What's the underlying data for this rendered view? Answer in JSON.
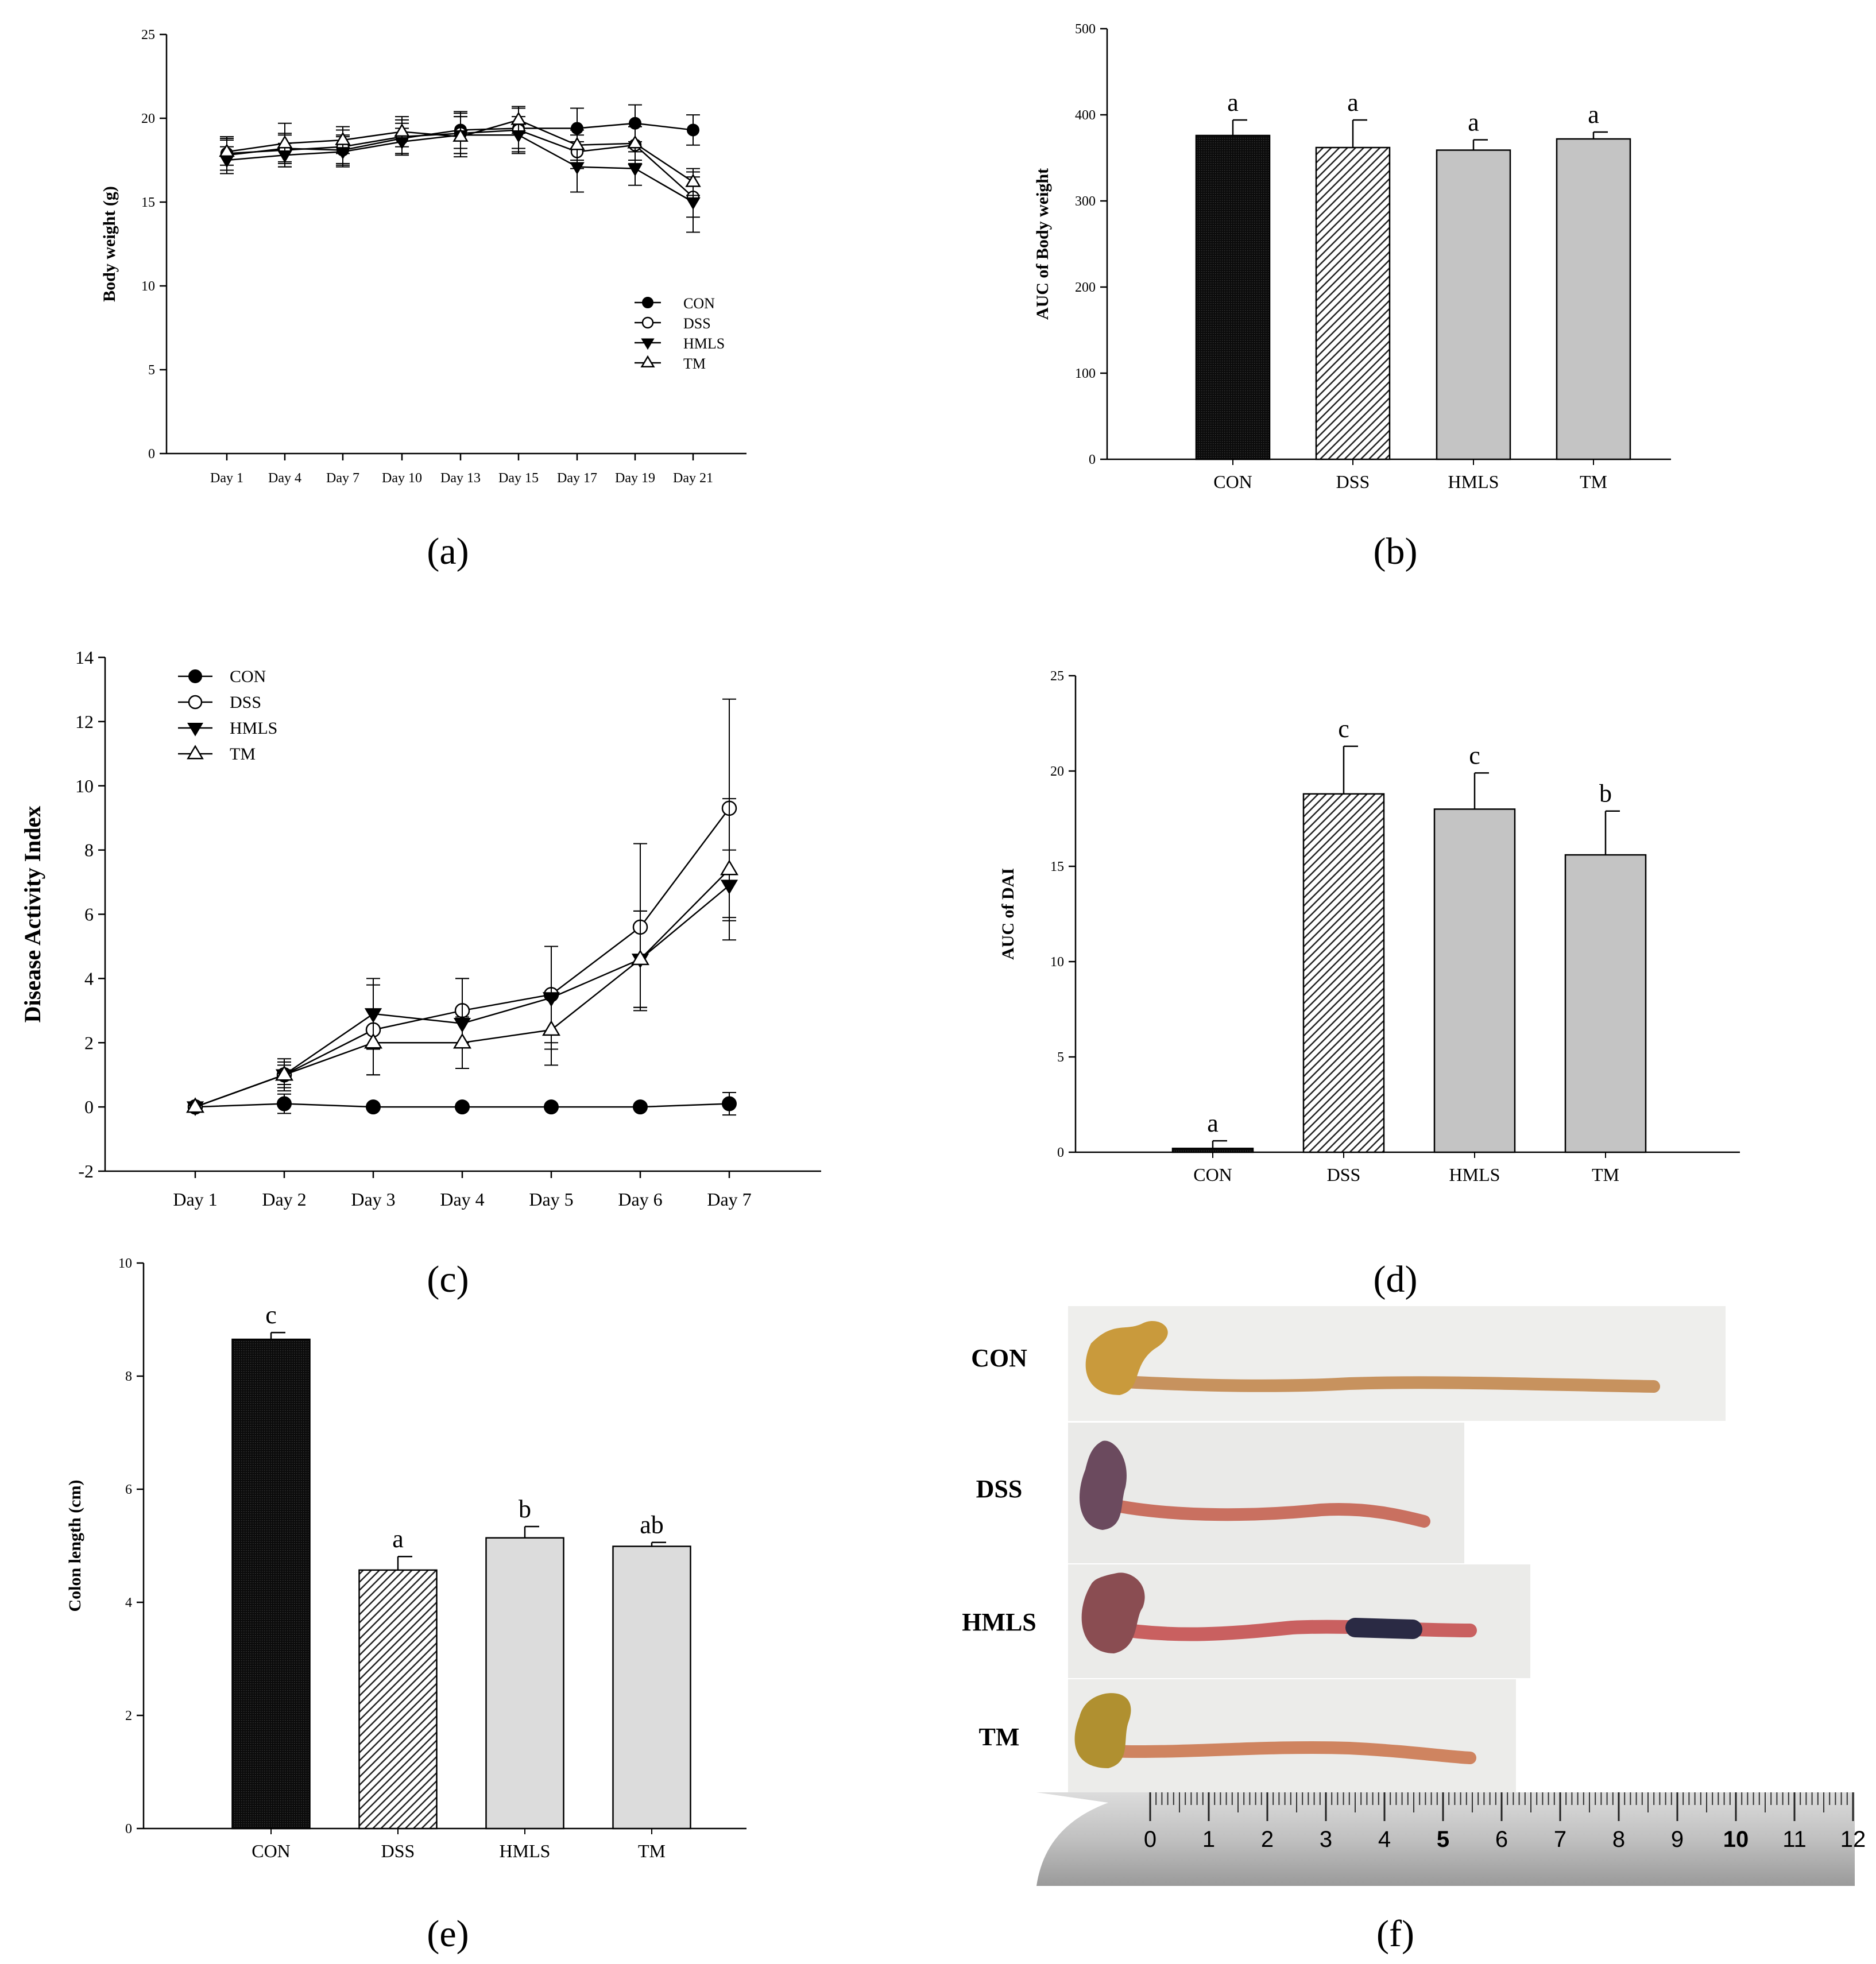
{
  "figure": {
    "panels": [
      {
        "id": "a",
        "label": "(a)"
      },
      {
        "id": "b",
        "label": "(b)"
      },
      {
        "id": "c",
        "label": "(c)"
      },
      {
        "id": "d",
        "label": "(d)"
      },
      {
        "id": "e",
        "label": "(e)"
      },
      {
        "id": "f",
        "label": "(f)"
      }
    ]
  },
  "photo": {
    "rows": [
      "CON",
      "DSS",
      "HMLS",
      "TM"
    ],
    "ruler_ticks": [
      "0",
      "1",
      "2",
      "3",
      "4",
      "5",
      "6",
      "7",
      "8",
      "9",
      "10",
      "11",
      "12"
    ]
  },
  "colors": {
    "black": "#000000",
    "bar_con": "#111111",
    "bar_gray": "#c4c4c4",
    "bar_gray_light": "#dcdcdc",
    "hatch": "#222222"
  },
  "chart_data": [
    {
      "id": "a",
      "type": "line",
      "title": "",
      "xlabel": "",
      "ylabel": "Body weight (g)",
      "categories": [
        "Day 1",
        "Day 4",
        "Day 7",
        "Day 10",
        "Day 13",
        "Day 15",
        "Day 17",
        "Day 19",
        "Day 21"
      ],
      "ylim": [
        0,
        25
      ],
      "yticks": [
        0,
        5,
        10,
        15,
        20,
        25
      ],
      "legend_position": "bottom-right",
      "series": [
        {
          "name": "CON",
          "marker": "circle-filled",
          "values": [
            17.8,
            18.2,
            18.1,
            18.8,
            19.3,
            19.4,
            19.4,
            19.7,
            19.3
          ],
          "errors": [
            0.9,
            0.8,
            0.9,
            0.9,
            1.1,
            1.2,
            1.2,
            1.1,
            0.9
          ]
        },
        {
          "name": "DSS",
          "marker": "circle-open",
          "values": [
            17.9,
            18.1,
            18.3,
            18.9,
            19.1,
            19.3,
            18.0,
            18.4,
            15.3
          ],
          "errors": [
            1.0,
            1.0,
            1.0,
            1.0,
            1.2,
            1.3,
            1.0,
            1.1,
            1.2
          ]
        },
        {
          "name": "HMLS",
          "marker": "triangle-down-filled",
          "values": [
            17.5,
            17.8,
            18.0,
            18.6,
            19.0,
            19.0,
            17.1,
            17.0,
            15.0
          ],
          "errors": [
            0.8,
            0.7,
            0.9,
            0.8,
            1.1,
            1.1,
            1.5,
            1.0,
            1.8
          ]
        },
        {
          "name": "TM",
          "marker": "triangle-up-open",
          "values": [
            18.0,
            18.5,
            18.7,
            19.2,
            18.9,
            19.9,
            18.4,
            18.5,
            16.2
          ],
          "errors": [
            0.8,
            1.2,
            0.8,
            0.9,
            1.2,
            0.8,
            0.9,
            1.0,
            0.8
          ]
        }
      ]
    },
    {
      "id": "b",
      "type": "bar",
      "title": "",
      "xlabel": "",
      "ylabel": "AUC of Body weight",
      "categories": [
        "CON",
        "DSS",
        "HMLS",
        "TM"
      ],
      "values": [
        376,
        362,
        359,
        372
      ],
      "errors": [
        18,
        32,
        12,
        8
      ],
      "letters": [
        "a",
        "a",
        "a",
        "a"
      ],
      "fills": [
        "solid-dark",
        "hatch",
        "gray",
        "gray"
      ],
      "ylim": [
        0,
        500
      ],
      "yticks": [
        0,
        100,
        200,
        300,
        400,
        500
      ]
    },
    {
      "id": "c",
      "type": "line",
      "title": "",
      "xlabel": "",
      "ylabel": "Disease Activity Index",
      "categories": [
        "Day 1",
        "Day 2",
        "Day 3",
        "Day 4",
        "Day 5",
        "Day 6",
        "Day 7"
      ],
      "ylim": [
        -2,
        14
      ],
      "yticks": [
        -2,
        0,
        2,
        4,
        6,
        8,
        10,
        12,
        14
      ],
      "legend_position": "top-left",
      "series": [
        {
          "name": "CON",
          "marker": "circle-filled",
          "values": [
            0,
            0.1,
            0,
            0,
            0,
            0,
            0.1
          ],
          "errors": [
            0,
            0.3,
            0,
            0,
            0,
            0,
            0.35
          ]
        },
        {
          "name": "DSS",
          "marker": "circle-open",
          "values": [
            0,
            1.0,
            2.4,
            3.0,
            3.5,
            5.6,
            9.3
          ],
          "errors": [
            0,
            0.5,
            1.4,
            1.0,
            1.5,
            2.6,
            3.4
          ]
        },
        {
          "name": "HMLS",
          "marker": "triangle-down-filled",
          "values": [
            0,
            1.0,
            2.9,
            2.6,
            3.4,
            4.6,
            6.9
          ],
          "errors": [
            0,
            0.3,
            1.1,
            1.4,
            1.6,
            1.5,
            1.1
          ]
        },
        {
          "name": "TM",
          "marker": "triangle-up-open",
          "values": [
            0,
            1.0,
            2.0,
            2.0,
            2.4,
            4.6,
            7.4
          ],
          "errors": [
            0,
            0.4,
            1.0,
            0.8,
            1.1,
            1.5,
            2.2
          ]
        }
      ]
    },
    {
      "id": "d",
      "type": "bar",
      "title": "",
      "xlabel": "",
      "ylabel": "AUC of DAI",
      "categories": [
        "CON",
        "DSS",
        "HMLS",
        "TM"
      ],
      "values": [
        0.2,
        18.8,
        18.0,
        15.6
      ],
      "errors": [
        0.4,
        2.5,
        1.9,
        2.3
      ],
      "letters": [
        "a",
        "c",
        "c",
        "b"
      ],
      "fills": [
        "solid-dark",
        "hatch",
        "gray",
        "gray"
      ],
      "ylim": [
        0,
        25
      ],
      "yticks": [
        0,
        5,
        10,
        15,
        20,
        25
      ]
    },
    {
      "id": "e",
      "type": "bar",
      "title": "",
      "xlabel": "",
      "ylabel": "Colon length (cm)",
      "categories": [
        "CON",
        "DSS",
        "HMLS",
        "TM"
      ],
      "values": [
        8.65,
        4.57,
        5.14,
        4.99
      ],
      "errors": [
        0.12,
        0.24,
        0.2,
        0.07
      ],
      "letters": [
        "c",
        "a",
        "b",
        "ab"
      ],
      "fills": [
        "solid-dark",
        "hatch",
        "gray-light",
        "gray-light"
      ],
      "ylim": [
        0,
        10
      ],
      "yticks": [
        0,
        2,
        4,
        6,
        8,
        10
      ]
    }
  ]
}
